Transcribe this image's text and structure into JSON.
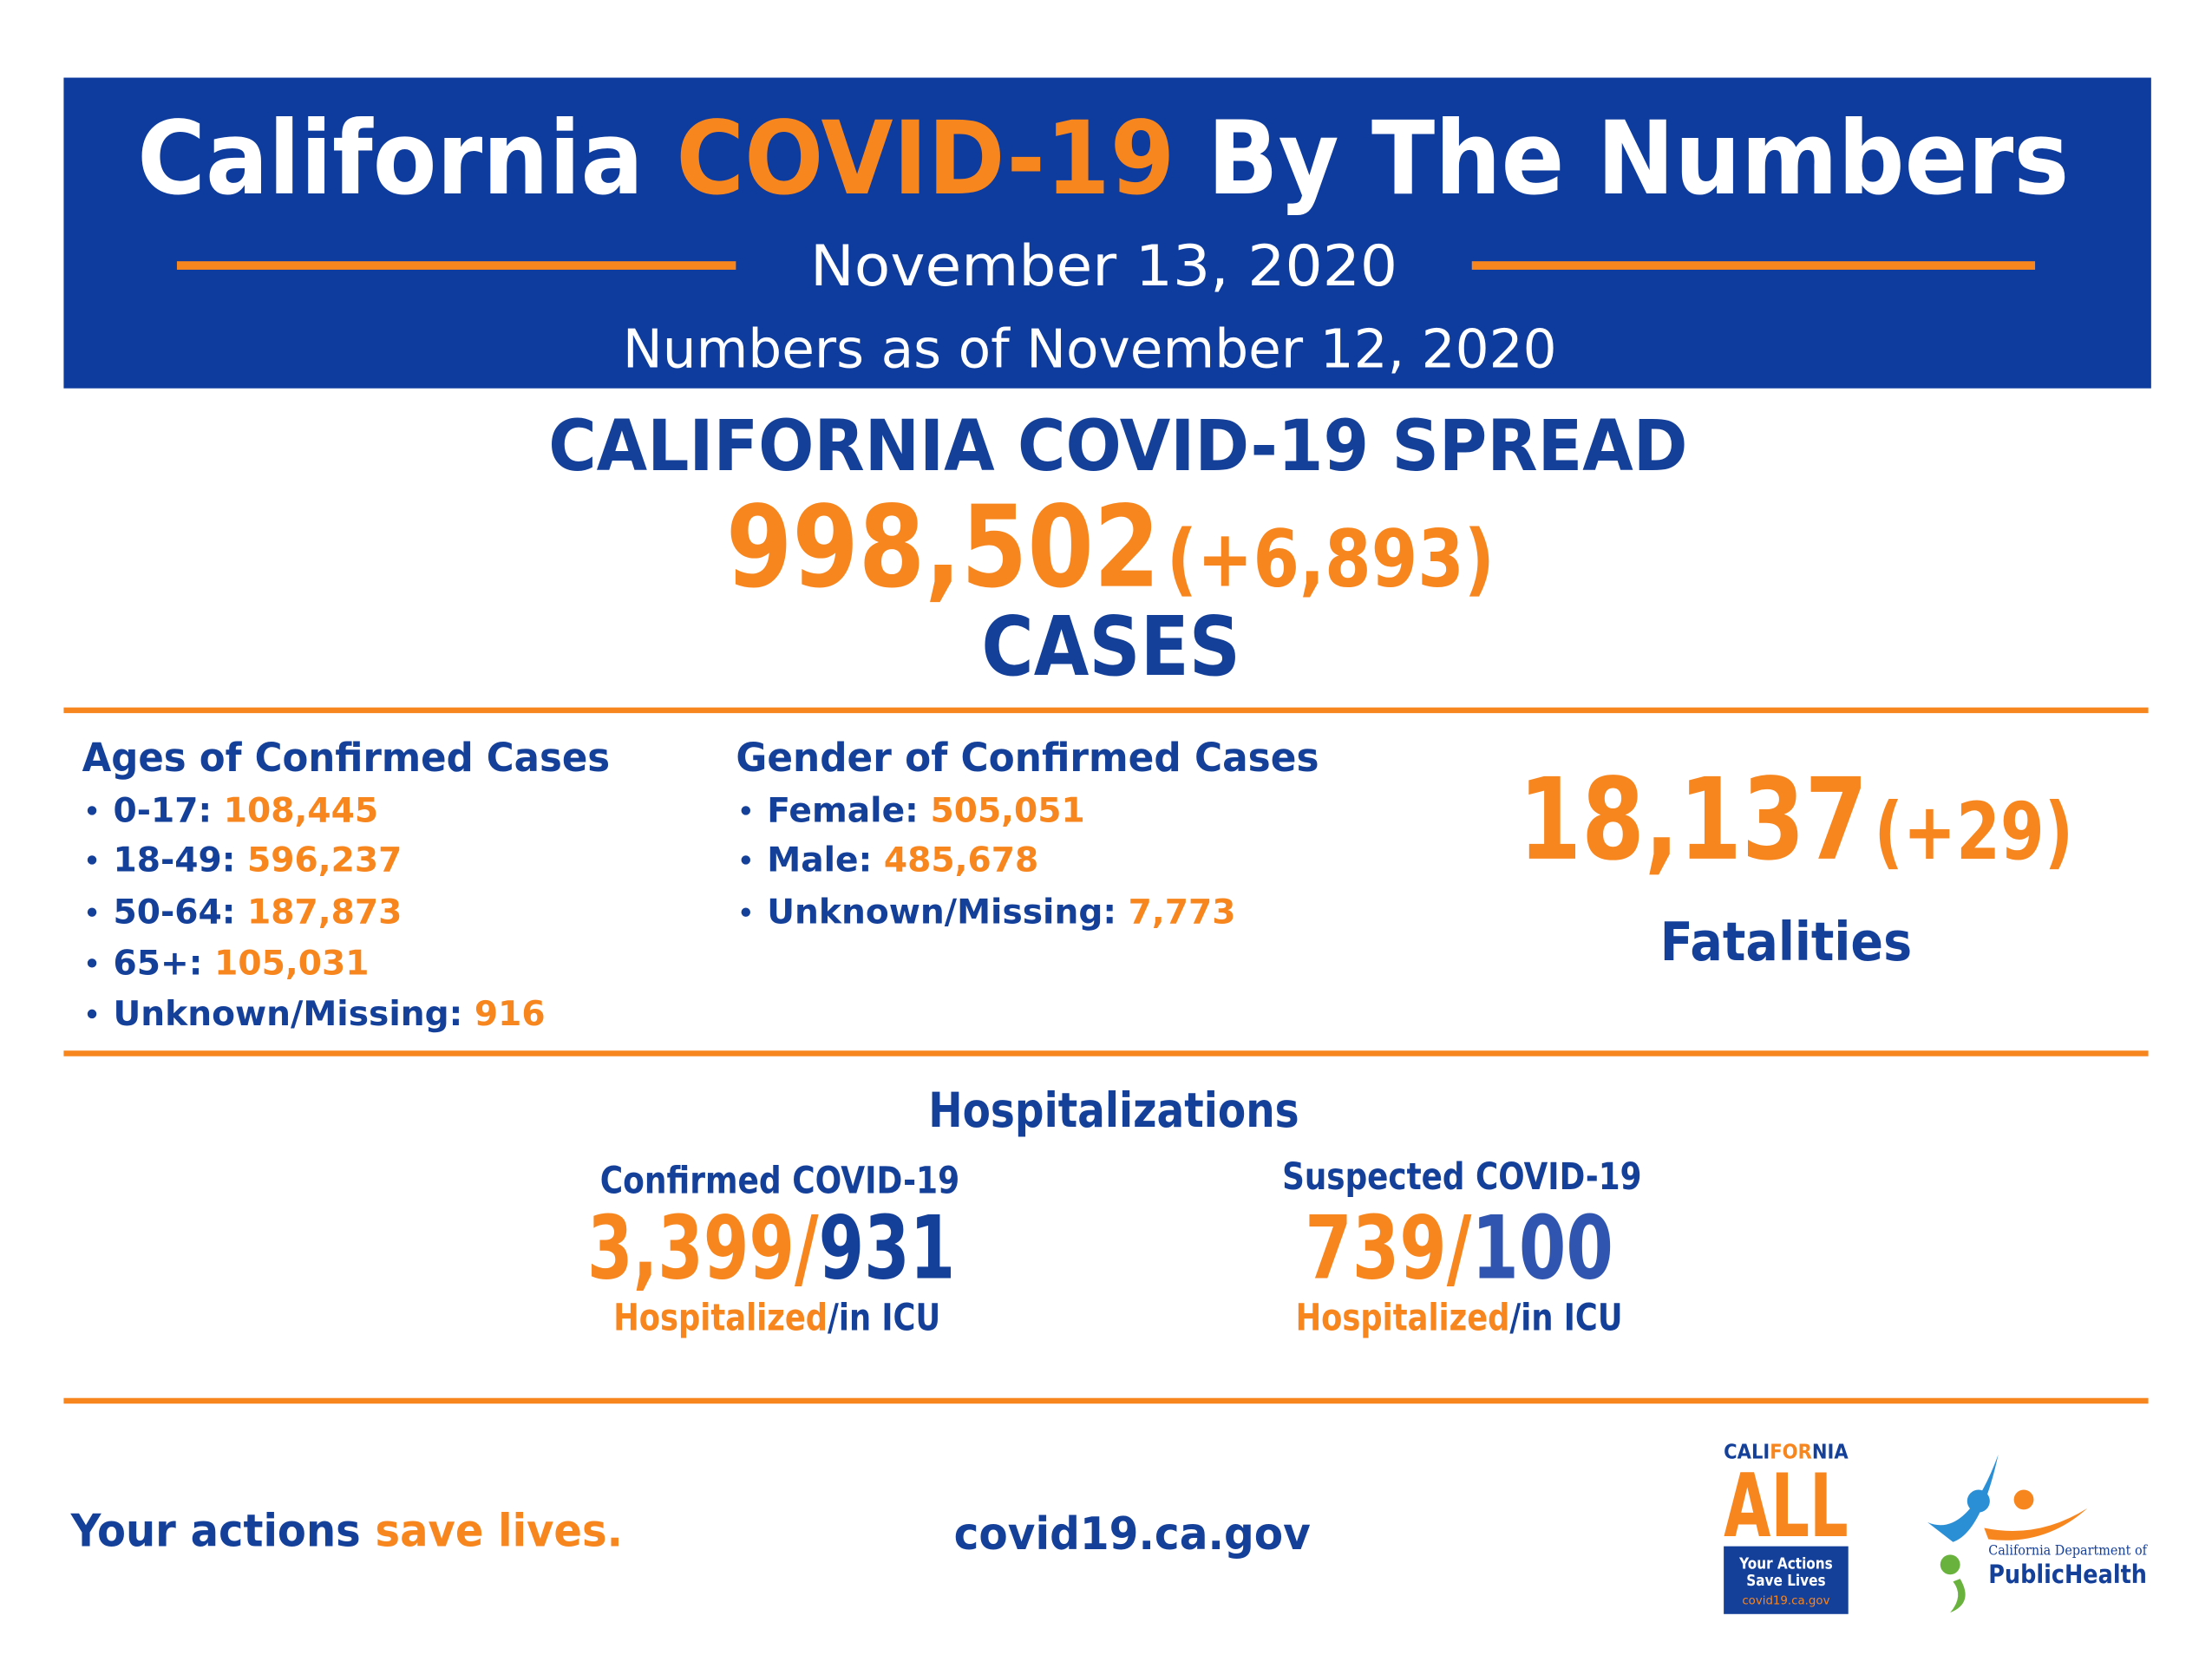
{
  "header": {
    "title": {
      "part1": "California",
      "part2": "COVID-19",
      "part3": "By The Numbers"
    },
    "date": "November 13, 2020",
    "as_of": "Numbers as of November 12, 2020"
  },
  "spread": {
    "title": "CALIFORNIA COVID-19 SPREAD",
    "cases": "998,502",
    "change": "(+6,893)",
    "label": "CASES"
  },
  "ages": {
    "title": "Ages of Confirmed Cases",
    "items": [
      {
        "label": "0-17:",
        "value": "108,445"
      },
      {
        "label": "18-49:",
        "value": "596,237"
      },
      {
        "label": "50-64:",
        "value": "187,873"
      },
      {
        "label": "65+:",
        "value": "105,031"
      },
      {
        "label": "Unknown/Missing:",
        "value": "916"
      }
    ]
  },
  "gender": {
    "title": "Gender of Confirmed Cases",
    "items": [
      {
        "label": "Female:",
        "value": "505,051"
      },
      {
        "label": "Male:",
        "value": "485,678"
      },
      {
        "label": "Unknown/Missing:",
        "value": "7,773"
      }
    ]
  },
  "fatalities": {
    "value": "18,137",
    "change": "(+29)",
    "label": "Fatalities"
  },
  "hospitalizations": {
    "title": "Hospitalizations",
    "confirmed": {
      "title": "Confirmed COVID-19",
      "hospitalized": "3,399",
      "separator": "/",
      "icu": "931",
      "label_hospitalized": "Hospitalized",
      "label_icu": "/in ICU"
    },
    "suspected": {
      "title": "Suspected COVID-19",
      "hospitalized": "739",
      "separator": "/",
      "icu": "100",
      "label_hospitalized": "Hospitalized",
      "label_icu": "/in ICU"
    }
  },
  "footer": {
    "slogan": {
      "part1": "Your actions",
      "part2": "save lives."
    },
    "url": "covid19.ca.gov",
    "logo_california_all": {
      "cali": "CALI",
      "for": "FOR",
      "nia": "NIA",
      "all": "ALL",
      "line1": "Your Actions",
      "line2": "Save Lives",
      "url": "covid19.ca.gov"
    },
    "logo_cdph": {
      "line1": "California Department of",
      "line2": "PublicHealth"
    }
  }
}
